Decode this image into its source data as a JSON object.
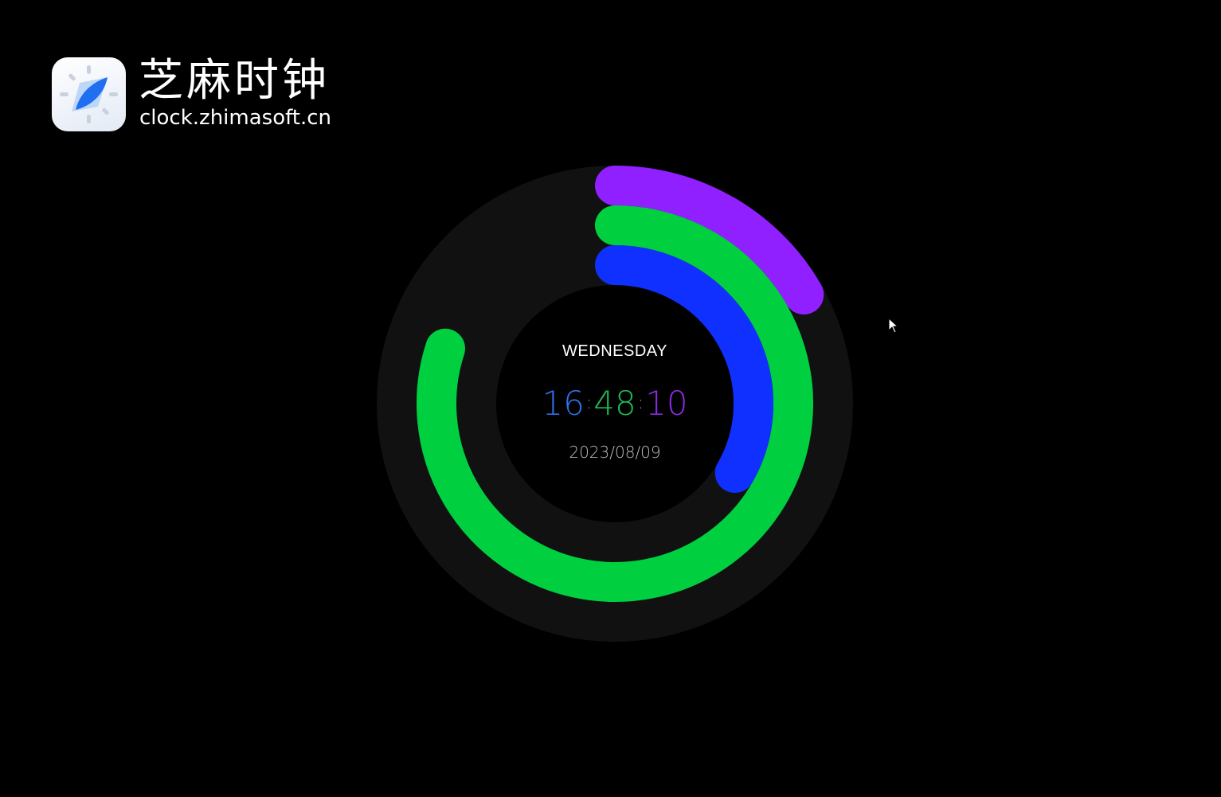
{
  "brand": {
    "title": "芝麻时钟",
    "url": "clock.zhimasoft.cn"
  },
  "clock": {
    "weekday": "WEDNESDAY",
    "hours": "16",
    "minutes": "48",
    "seconds": "10",
    "separator": ":",
    "date": "2023/08/09"
  },
  "colors": {
    "hours": "#1030ff",
    "minutes": "#00d040",
    "seconds": "#9020ff",
    "track": "#111111",
    "hours_text": "#2f6fe8",
    "minutes_text": "#1dbb55",
    "seconds_text": "#8a2be2"
  }
}
